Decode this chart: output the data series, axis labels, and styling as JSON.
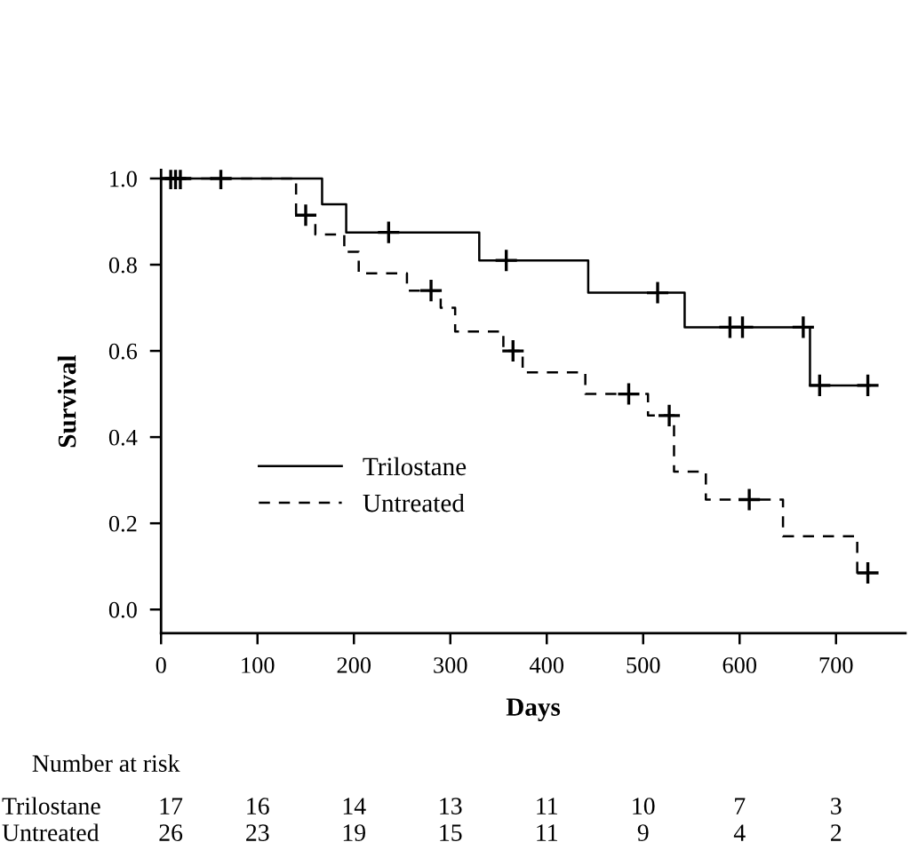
{
  "chart_data": {
    "type": "step",
    "xlabel": "Days",
    "ylabel": "Survival",
    "xlim": [
      0,
      772
    ],
    "xticks": [
      0,
      100,
      200,
      300,
      400,
      500,
      600,
      700
    ],
    "ylim": [
      -0.055,
      1.02
    ],
    "yticks": [
      {
        "value": 0,
        "label": "0.0"
      },
      0.2,
      0.4,
      0.6,
      0.8,
      {
        "value": 1,
        "label": "1.0"
      }
    ],
    "grid": false,
    "legend": "bottom left",
    "series": [
      {
        "name": "Trilostane",
        "color": "#000000",
        "line_style": "solid",
        "x": [
          0,
          167,
          192,
          330,
          443,
          543,
          673,
          735
        ],
        "values": [
          1.0,
          0.94,
          0.875,
          0.81,
          0.735,
          0.655,
          0.52,
          0.52
        ]
      },
      {
        "name": "Untreated",
        "color": "#000000",
        "line_style": "dashed",
        "x": [
          0,
          140,
          160,
          190,
          205,
          255,
          290,
          305,
          355,
          375,
          440,
          505,
          532,
          565,
          645,
          722,
          735
        ],
        "values": [
          1.0,
          0.915,
          0.87,
          0.83,
          0.78,
          0.74,
          0.7,
          0.645,
          0.6,
          0.55,
          0.5,
          0.45,
          0.32,
          0.255,
          0.17,
          0.085,
          0.085
        ]
      },
      {
        "type": "scatter",
        "color": "#000000",
        "marker": "cross",
        "x": [
          10,
          15,
          20,
          62,
          236,
          358,
          515,
          590,
          603,
          666,
          683,
          733
        ],
        "values": [
          1.0,
          1.0,
          1.0,
          1.0,
          0.875,
          0.81,
          0.735,
          0.655,
          0.655,
          0.655,
          0.52,
          0.52
        ]
      },
      {
        "type": "scatter",
        "color": "#000000",
        "marker": "cross",
        "x": [
          150,
          280,
          365,
          485,
          527,
          610,
          733
        ],
        "values": [
          0.915,
          0.74,
          0.6,
          0.5,
          0.45,
          0.255,
          0.085
        ]
      }
    ],
    "annotations": [
      "Number at risk",
      "Trilostane",
      "17",
      "16",
      "14",
      "13",
      "11",
      "10",
      "7",
      "3",
      "Untreated",
      "26",
      "23",
      "19",
      "15",
      "11",
      "9",
      "4",
      "2"
    ]
  }
}
